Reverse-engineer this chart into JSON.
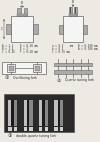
{
  "bg_color": "#ede9e3",
  "panel_colors": {
    "outline": "#666666",
    "fork_gray": "#aaaaaa",
    "fork_dark": "#555555",
    "white": "#f5f5f5",
    "photo_bg": "#2a2a2a",
    "photo_bar_light": "#c0c0c0",
    "photo_bar_mid": "#888888",
    "photo_bar_dark": "#1a1a1a",
    "photo_tab_light": "#d0d0d0",
    "label_color": "#333333"
  },
  "fork1_label": "Oscillating fork",
  "fork2_label": "Quartz tuning fork",
  "fork3_label": "double-quartz tuning fork",
  "params_left": [
    "A = 1.1    D = 0.30 mm",
    "B = 1.4    E = 2",
    "C = 0.45   F = 0.20 mm"
  ],
  "params_right": [
    "a = 0.3    mm   B = 0.200 mm",
    "b = 0.5         A = 0.100 mm",
    "C = 0.35 mm"
  ]
}
